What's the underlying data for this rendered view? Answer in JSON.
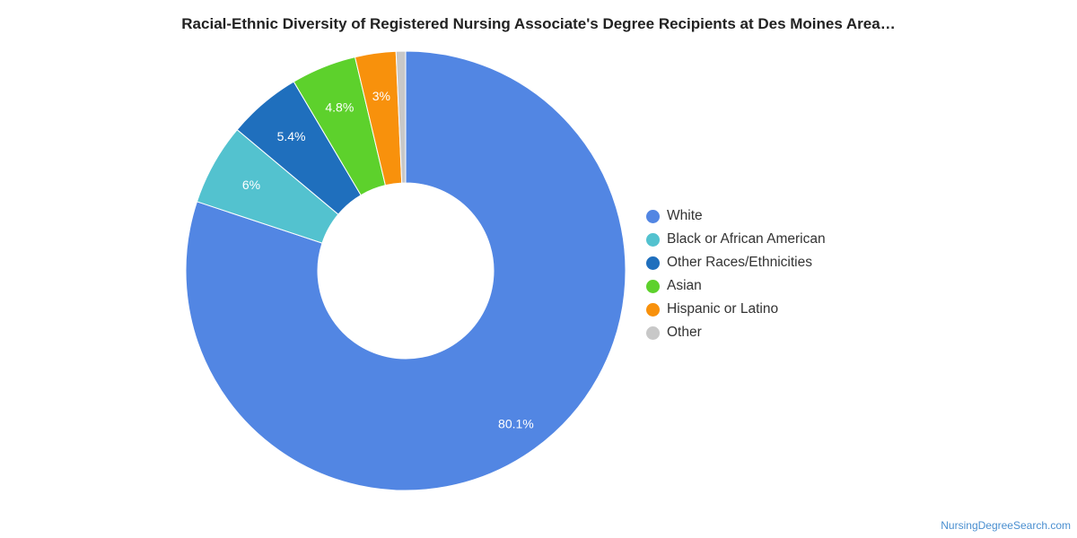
{
  "chart_data": {
    "type": "pie",
    "title": "Racial-Ethnic Diversity of Registered Nursing Associate's Degree Recipients at Des Moines Area…",
    "donut": true,
    "legend_position": "right",
    "slices": [
      {
        "label": "White",
        "value": 80.1,
        "display": "80.1%",
        "color": "#5286e3"
      },
      {
        "label": "Black or African American",
        "value": 6,
        "display": "6%",
        "color": "#53c2cf"
      },
      {
        "label": "Other Races/Ethnicities",
        "value": 5.4,
        "display": "5.4%",
        "color": "#1f6fbd"
      },
      {
        "label": "Asian",
        "value": 4.8,
        "display": "4.8%",
        "color": "#5dd12c"
      },
      {
        "label": "Hispanic or Latino",
        "value": 3,
        "display": "3%",
        "color": "#f8910c"
      },
      {
        "label": "Other",
        "value": 0.7,
        "display": "",
        "color": "#c8c8c8"
      }
    ]
  },
  "watermark": "NursingDegreeSearch.com"
}
